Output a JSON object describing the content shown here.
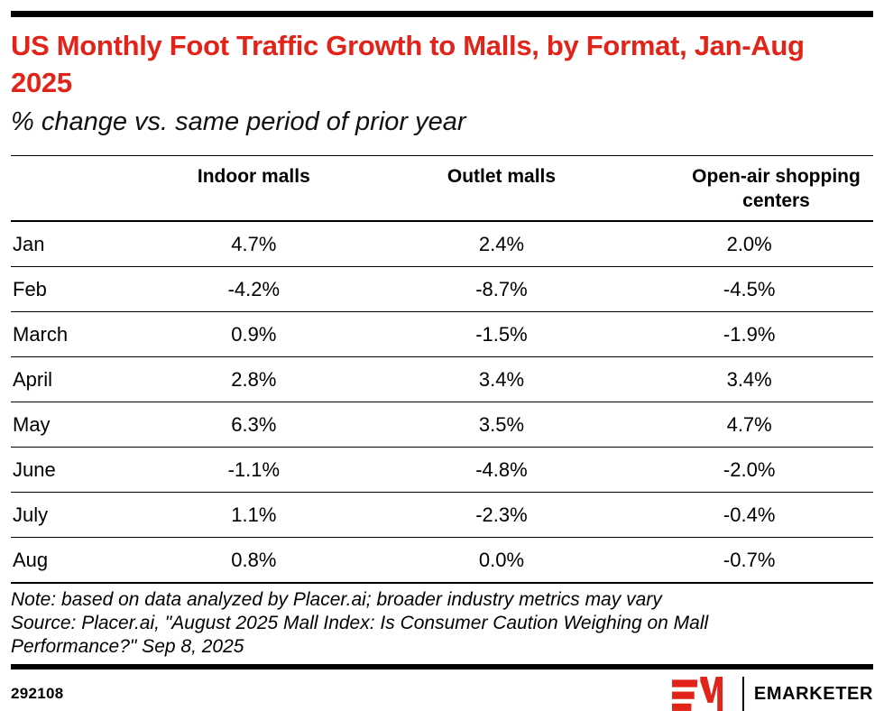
{
  "brand": {
    "accent": "#e2231a",
    "bar_color": "#000000"
  },
  "header": {
    "title": "US Monthly Foot Traffic Growth to Malls, by Format, Jan-Aug 2025",
    "subtitle": "% change vs. same period of prior year"
  },
  "chart_data": {
    "type": "table",
    "title": "US Monthly Foot Traffic Growth to Malls, by Format, Jan-Aug 2025",
    "subtitle": "% change vs. same period of prior year",
    "unit": "%",
    "value_format": "one_decimal_percent",
    "columns": [
      "Indoor malls",
      "Outlet malls",
      "Open-air shopping centers"
    ],
    "rows": [
      {
        "month": "Jan",
        "values": [
          4.7,
          2.4,
          2.0
        ]
      },
      {
        "month": "Feb",
        "values": [
          -4.2,
          -8.7,
          -4.5
        ]
      },
      {
        "month": "March",
        "values": [
          0.9,
          -1.5,
          -1.9
        ]
      },
      {
        "month": "April",
        "values": [
          2.8,
          3.4,
          3.4
        ]
      },
      {
        "month": "May",
        "values": [
          6.3,
          3.5,
          4.7
        ]
      },
      {
        "month": "June",
        "values": [
          -1.1,
          -4.8,
          -2.0
        ]
      },
      {
        "month": "July",
        "values": [
          1.1,
          -2.3,
          -0.4
        ]
      },
      {
        "month": "Aug",
        "values": [
          0.8,
          0.0,
          -0.7
        ]
      }
    ]
  },
  "footnotes": {
    "note": "Note: based on data analyzed by Placer.ai; broader industry metrics may vary",
    "source": "Source: Placer.ai, \"August 2025 Mall Index: Is Consumer Caution Weighing on Mall Performance?\" Sep 8, 2025"
  },
  "footer": {
    "chart_id": "292108",
    "logo_mark": "em-logo",
    "brand_name": "EMARKETER"
  }
}
